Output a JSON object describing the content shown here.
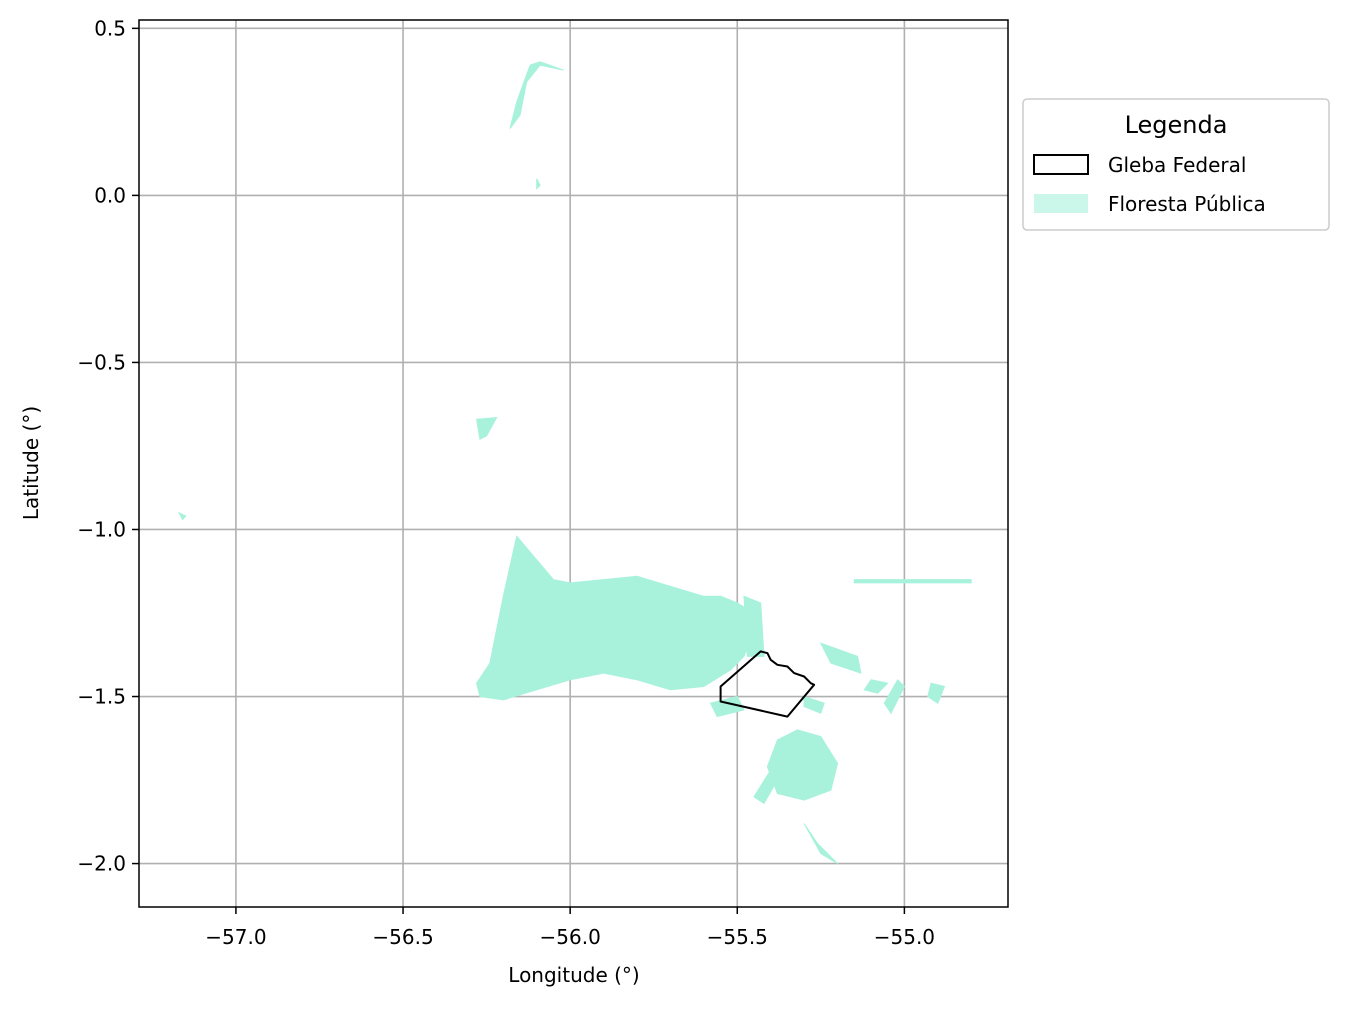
{
  "chart_data": {
    "type": "map",
    "xlabel": "Longitude (°)",
    "ylabel": "Latitude (°)",
    "xlim": [
      -57.29,
      -54.69
    ],
    "ylim": [
      -2.13,
      0.525
    ],
    "x_ticks": [
      -57.0,
      -56.5,
      -56.0,
      -55.5,
      -55.0
    ],
    "x_tick_labels": [
      "−57.0",
      "−56.5",
      "−56.0",
      "−55.5",
      "−55.0"
    ],
    "y_ticks": [
      0.5,
      0.0,
      -0.5,
      -1.0,
      -1.5,
      -2.0
    ],
    "y_tick_labels": [
      "0.5",
      "0.0",
      "−0.5",
      "−1.0",
      "−1.5",
      "−2.0"
    ],
    "grid": true,
    "legend": {
      "title": "Legenda",
      "placement": "outside-right-top",
      "entries": [
        {
          "label": "Gleba Federal",
          "style": "outline",
          "color": "#000000"
        },
        {
          "label": "Floresta Pública",
          "style": "fill",
          "color": "#a8f2dc"
        }
      ]
    },
    "layers": {
      "gleba_federal": [
        [
          [
            -55.43,
            -1.365
          ],
          [
            -55.41,
            -1.37
          ],
          [
            -55.4,
            -1.39
          ],
          [
            -55.38,
            -1.405
          ],
          [
            -55.35,
            -1.41
          ],
          [
            -55.33,
            -1.43
          ],
          [
            -55.3,
            -1.44
          ],
          [
            -55.28,
            -1.46
          ],
          [
            -55.27,
            -1.465
          ],
          [
            -55.35,
            -1.56
          ],
          [
            -55.55,
            -1.515
          ],
          [
            -55.55,
            -1.47
          ],
          [
            -55.43,
            -1.365
          ]
        ]
      ],
      "floresta_publica": [
        [
          [
            -56.16,
            -1.02
          ],
          [
            -56.05,
            -1.15
          ],
          [
            -56.0,
            -1.16
          ],
          [
            -55.9,
            -1.15
          ],
          [
            -55.8,
            -1.14
          ],
          [
            -55.7,
            -1.17
          ],
          [
            -55.6,
            -1.2
          ],
          [
            -55.55,
            -1.2
          ],
          [
            -55.5,
            -1.22
          ],
          [
            -55.45,
            -1.25
          ],
          [
            -55.46,
            -1.33
          ],
          [
            -55.48,
            -1.38
          ],
          [
            -55.52,
            -1.42
          ],
          [
            -55.6,
            -1.47
          ],
          [
            -55.7,
            -1.48
          ],
          [
            -55.8,
            -1.45
          ],
          [
            -55.9,
            -1.43
          ],
          [
            -56.0,
            -1.45
          ],
          [
            -56.1,
            -1.48
          ],
          [
            -56.2,
            -1.51
          ],
          [
            -56.27,
            -1.5
          ],
          [
            -56.28,
            -1.46
          ],
          [
            -56.24,
            -1.4
          ],
          [
            -56.22,
            -1.3
          ],
          [
            -56.2,
            -1.2
          ],
          [
            -56.16,
            -1.02
          ]
        ],
        [
          [
            -55.48,
            -1.2
          ],
          [
            -55.43,
            -1.22
          ],
          [
            -55.42,
            -1.38
          ],
          [
            -55.47,
            -1.38
          ],
          [
            -55.48,
            -1.2
          ]
        ],
        [
          [
            -55.25,
            -1.34
          ],
          [
            -55.14,
            -1.38
          ],
          [
            -55.13,
            -1.43
          ],
          [
            -55.22,
            -1.4
          ],
          [
            -55.25,
            -1.34
          ]
        ],
        [
          [
            -55.32,
            -1.6
          ],
          [
            -55.25,
            -1.62
          ],
          [
            -55.2,
            -1.7
          ],
          [
            -55.22,
            -1.78
          ],
          [
            -55.3,
            -1.81
          ],
          [
            -55.38,
            -1.79
          ],
          [
            -55.41,
            -1.71
          ],
          [
            -55.38,
            -1.63
          ],
          [
            -55.32,
            -1.6
          ]
        ],
        [
          [
            -55.5,
            -1.5
          ],
          [
            -55.58,
            -1.52
          ],
          [
            -55.56,
            -1.56
          ],
          [
            -55.48,
            -1.54
          ],
          [
            -55.5,
            -1.5
          ]
        ],
        [
          [
            -55.3,
            -1.5
          ],
          [
            -55.24,
            -1.52
          ],
          [
            -55.25,
            -1.55
          ],
          [
            -55.3,
            -1.53
          ],
          [
            -55.3,
            -1.5
          ]
        ],
        [
          [
            -56.28,
            -0.67
          ],
          [
            -56.22,
            -0.665
          ],
          [
            -56.25,
            -0.72
          ],
          [
            -56.27,
            -0.73
          ],
          [
            -56.28,
            -0.67
          ]
        ],
        [
          [
            -56.16,
            0.28
          ],
          [
            -56.12,
            0.39
          ],
          [
            -56.09,
            0.4
          ],
          [
            -56.02,
            0.375
          ],
          [
            -56.09,
            0.39
          ],
          [
            -56.13,
            0.34
          ],
          [
            -56.15,
            0.24
          ],
          [
            -56.18,
            0.2
          ],
          [
            -56.16,
            0.28
          ]
        ],
        [
          [
            -55.02,
            -1.45
          ],
          [
            -55.0,
            -1.47
          ],
          [
            -55.04,
            -1.55
          ],
          [
            -55.06,
            -1.52
          ],
          [
            -55.02,
            -1.45
          ]
        ],
        [
          [
            -54.92,
            -1.46
          ],
          [
            -54.88,
            -1.47
          ],
          [
            -54.9,
            -1.52
          ],
          [
            -54.93,
            -1.5
          ],
          [
            -54.92,
            -1.46
          ]
        ],
        [
          [
            -55.1,
            -1.45
          ],
          [
            -55.05,
            -1.46
          ],
          [
            -55.08,
            -1.49
          ],
          [
            -55.12,
            -1.48
          ],
          [
            -55.1,
            -1.45
          ]
        ],
        [
          [
            -55.3,
            -1.88
          ],
          [
            -55.25,
            -1.97
          ],
          [
            -55.2,
            -2.0
          ],
          [
            -55.26,
            -1.94
          ],
          [
            -55.3,
            -1.88
          ]
        ],
        [
          [
            -55.15,
            -1.15
          ],
          [
            -54.8,
            -1.15
          ],
          [
            -54.8,
            -1.16
          ],
          [
            -55.15,
            -1.16
          ],
          [
            -55.15,
            -1.15
          ]
        ],
        [
          [
            -57.17,
            -0.95
          ],
          [
            -57.15,
            -0.96
          ],
          [
            -57.16,
            -0.97
          ],
          [
            -57.17,
            -0.95
          ]
        ],
        [
          [
            -56.1,
            0.05
          ],
          [
            -56.09,
            0.03
          ],
          [
            -56.1,
            0.02
          ],
          [
            -56.1,
            0.05
          ]
        ],
        [
          [
            -55.4,
            -1.72
          ],
          [
            -55.45,
            -1.8
          ],
          [
            -55.42,
            -1.82
          ],
          [
            -55.38,
            -1.75
          ],
          [
            -55.4,
            -1.72
          ]
        ]
      ]
    }
  }
}
